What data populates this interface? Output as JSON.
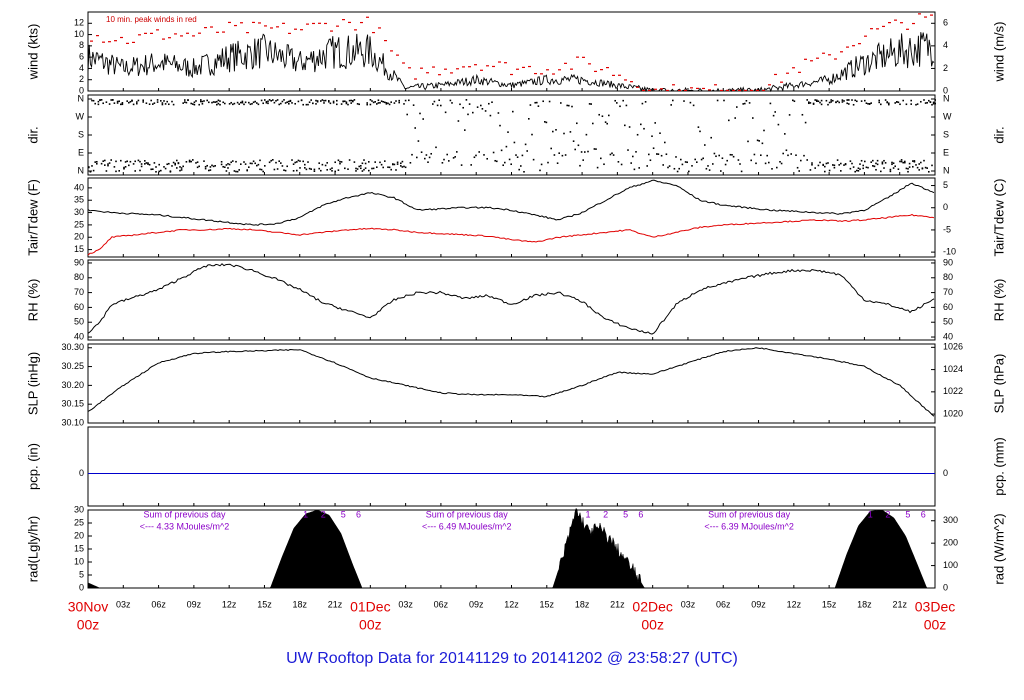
{
  "title": "UW Rooftop Data for 20141129  to  20141202 @ 23:58:27  (UTC)",
  "colors": {
    "trace": "#000000",
    "peak": "#e00000",
    "dew": "#e00000",
    "precip": "#0000cc",
    "annotation": "#8b00c8",
    "title": "#1c1cd6"
  },
  "chart_data": [
    {
      "type": "line",
      "id": "wind",
      "ylabel_left": "wind (kts)",
      "ylabel_right": "wind (m/s)",
      "ylim_left": [
        0,
        14
      ],
      "ylim_right": [
        0,
        7
      ],
      "yticks_left": [
        "0",
        "2",
        "4",
        "6",
        "8",
        "10",
        "12"
      ],
      "yticks_right": [
        "0",
        "2",
        "4",
        "6"
      ],
      "annotation": "10 min. peak winds in red",
      "series": [
        {
          "x": [
            0,
            3,
            6,
            9,
            12,
            15,
            18,
            21,
            24,
            27,
            30,
            33,
            36,
            39,
            42,
            45,
            48,
            51,
            54,
            57,
            60,
            63,
            66,
            69,
            72
          ],
          "values": [
            6,
            4,
            5,
            4,
            6,
            7,
            5,
            7,
            7,
            0.5,
            1,
            2,
            1,
            2,
            2,
            1,
            0,
            0,
            0,
            0,
            1,
            2,
            5,
            7,
            8
          ]
        },
        {
          "x": [
            0,
            3,
            6,
            9,
            12,
            15,
            18,
            21,
            24,
            27,
            30,
            33,
            36,
            39,
            42,
            45,
            48,
            51,
            54,
            57,
            60,
            63,
            66,
            69,
            72
          ],
          "values": [
            10,
            9,
            10,
            10,
            11,
            11,
            11,
            12,
            12,
            3,
            4,
            5,
            4,
            4,
            5,
            3,
            0,
            0,
            0,
            0,
            4,
            6,
            10,
            12,
            13
          ]
        }
      ]
    },
    {
      "type": "scatter",
      "id": "dir",
      "ylabel_left": "dir.",
      "ylabel_right": "dir.",
      "yticks_left": [
        "N",
        "E",
        "S",
        "W",
        "N"
      ],
      "yticks_right": [
        "N",
        "E",
        "S",
        "W",
        "N"
      ]
    },
    {
      "type": "line",
      "id": "temp",
      "ylabel_left": "Tair/Tdew (F)",
      "ylabel_right": "Tair/Tdew (C)",
      "ylim_left": [
        12,
        44
      ],
      "ylim_right": [
        -11.1,
        6.7
      ],
      "yticks_left": [
        "15",
        "20",
        "25",
        "30",
        "35",
        "40"
      ],
      "yticks_right": [
        "-10",
        "-5",
        "0",
        "5"
      ],
      "series": [
        {
          "x": [
            0,
            2,
            4,
            6,
            8,
            10,
            12,
            14,
            16,
            18,
            20,
            22,
            24,
            26,
            28,
            30,
            32,
            34,
            36,
            38,
            40,
            42,
            44,
            46,
            48,
            50,
            52,
            54,
            56,
            58,
            60,
            62,
            64,
            66,
            68,
            70,
            72
          ],
          "values": [
            31,
            30,
            29.5,
            29,
            28,
            27,
            26,
            25,
            25.5,
            28,
            33,
            36,
            38,
            36,
            31,
            31.5,
            32,
            32,
            31,
            29,
            27,
            30,
            35,
            40,
            43,
            41,
            35,
            33,
            32,
            31,
            30.5,
            30,
            29.5,
            31,
            36,
            42,
            38
          ]
        },
        {
          "x": [
            0,
            1,
            2,
            4,
            6,
            8,
            10,
            12,
            14,
            16,
            18,
            20,
            22,
            24,
            26,
            28,
            30,
            32,
            34,
            36,
            38,
            40,
            42,
            44,
            46,
            48,
            50,
            52,
            54,
            56,
            58,
            60,
            62,
            64,
            66,
            68,
            70,
            72
          ],
          "values": [
            13,
            15,
            20,
            21,
            22,
            23,
            23,
            23.5,
            23,
            22,
            21,
            22,
            23,
            23.5,
            23,
            22,
            21.5,
            21,
            20.5,
            19,
            18,
            20,
            21,
            22,
            23,
            20,
            22,
            24,
            25,
            25.5,
            26,
            26.5,
            27,
            26.5,
            27,
            28,
            29,
            28
          ]
        }
      ]
    },
    {
      "type": "line",
      "id": "rh",
      "ylabel_left": "RH (%)",
      "ylabel_right": "RH (%)",
      "ylim_left": [
        38,
        92
      ],
      "ylim_right": [
        38,
        92
      ],
      "yticks_left": [
        "40",
        "50",
        "60",
        "70",
        "80",
        "90"
      ],
      "yticks_right": [
        "40",
        "50",
        "60",
        "70",
        "80",
        "90"
      ],
      "series": [
        {
          "x": [
            0,
            1,
            2,
            4,
            6,
            8,
            10,
            12,
            14,
            16,
            18,
            20,
            22,
            24,
            26,
            28,
            30,
            32,
            34,
            36,
            38,
            40,
            42,
            44,
            46,
            48,
            49,
            50,
            52,
            54,
            56,
            58,
            60,
            62,
            64,
            66,
            68,
            70,
            72
          ],
          "values": [
            43,
            50,
            62,
            67,
            72,
            80,
            88,
            89,
            85,
            79,
            72,
            63,
            58,
            53,
            65,
            70,
            70,
            66,
            68,
            62,
            68,
            70,
            64,
            52,
            46,
            42,
            52,
            62,
            72,
            76,
            80,
            83,
            85,
            85,
            82,
            65,
            62,
            57,
            66
          ]
        }
      ]
    },
    {
      "type": "line",
      "id": "slp",
      "ylabel_left": "SLP (inHg)",
      "ylabel_right": "SLP (hPa)",
      "ylim_left": [
        30.1,
        30.31
      ],
      "ylim_right": [
        1019.2,
        1026.3
      ],
      "yticks_left": [
        "30.10",
        "30.15",
        "30.20",
        "30.25",
        "30.30"
      ],
      "yticks_right": [
        "1020",
        "1022",
        "1024",
        "1026"
      ],
      "series": [
        {
          "x": [
            0,
            3,
            6,
            9,
            12,
            15,
            18,
            21,
            24,
            27,
            30,
            33,
            36,
            39,
            42,
            45,
            48,
            51,
            54,
            57,
            60,
            63,
            66,
            69,
            72
          ],
          "values": [
            30.13,
            30.2,
            30.26,
            30.285,
            30.29,
            30.292,
            30.295,
            30.26,
            30.22,
            30.2,
            30.18,
            30.175,
            30.175,
            30.17,
            30.2,
            30.235,
            30.23,
            30.26,
            30.29,
            30.3,
            30.285,
            30.27,
            30.25,
            30.2,
            30.115
          ]
        }
      ]
    },
    {
      "type": "line",
      "id": "pcp",
      "ylabel_left": "pcp. (in)",
      "ylabel_right": "pcp. (mm)",
      "yticks_left": [
        "0"
      ],
      "yticks_right": [
        "0"
      ],
      "series": [
        {
          "x": [
            0,
            72
          ],
          "values": [
            0,
            0
          ]
        }
      ]
    },
    {
      "type": "area",
      "id": "rad",
      "ylabel_left": "rad(Lgly/hr)",
      "ylabel_right": "rad (W/m^2)",
      "ylim_left": [
        0,
        30
      ],
      "ylim_right": [
        0,
        348
      ],
      "yticks_left": [
        "0",
        "5",
        "10",
        "15",
        "20",
        "25",
        "30"
      ],
      "yticks_right": [
        "0",
        "100",
        "200",
        "300"
      ],
      "hour_marks": [
        "1",
        "2",
        "5",
        "6"
      ],
      "annotations": [
        {
          "line1": "Sum of previous day",
          "line2": "<--- 4.33 MJoules/m^2"
        },
        {
          "line1": "Sum of previous day",
          "line2": "<--- 6.49 MJoules/m^2"
        },
        {
          "line1": "Sum of previous day",
          "line2": "<--- 6.39 MJoules/m^2"
        }
      ],
      "series": [
        {
          "x": [
            0,
            0.5,
            1,
            15.5,
            16.5,
            17.5,
            18.5,
            19.5,
            20.5,
            21.5,
            22.5,
            23.3,
            39.5,
            40.5,
            41.5,
            42.5,
            43.5,
            44.5,
            45.5,
            46.5,
            47.3,
            63.5,
            64.5,
            65.5,
            66.5,
            67.5,
            68.5,
            69.5,
            70.5,
            71.3,
            72
          ],
          "values": [
            2,
            1,
            0,
            0,
            12,
            23,
            28.5,
            30,
            28,
            21,
            9,
            0,
            0,
            14,
            30,
            22,
            23,
            18,
            12,
            6,
            0,
            0,
            13,
            24,
            29.5,
            30,
            27,
            20,
            9,
            0,
            0
          ]
        }
      ]
    }
  ],
  "xaxis": {
    "hours": [
      "03z",
      "06z",
      "09z",
      "12z",
      "15z",
      "18z",
      "21z"
    ],
    "days": [
      {
        "date": "30Nov",
        "time": "00z"
      },
      {
        "date": "01Dec",
        "time": "00z"
      },
      {
        "date": "02Dec",
        "time": "00z"
      },
      {
        "date": "03Dec",
        "time": "00z"
      }
    ]
  }
}
